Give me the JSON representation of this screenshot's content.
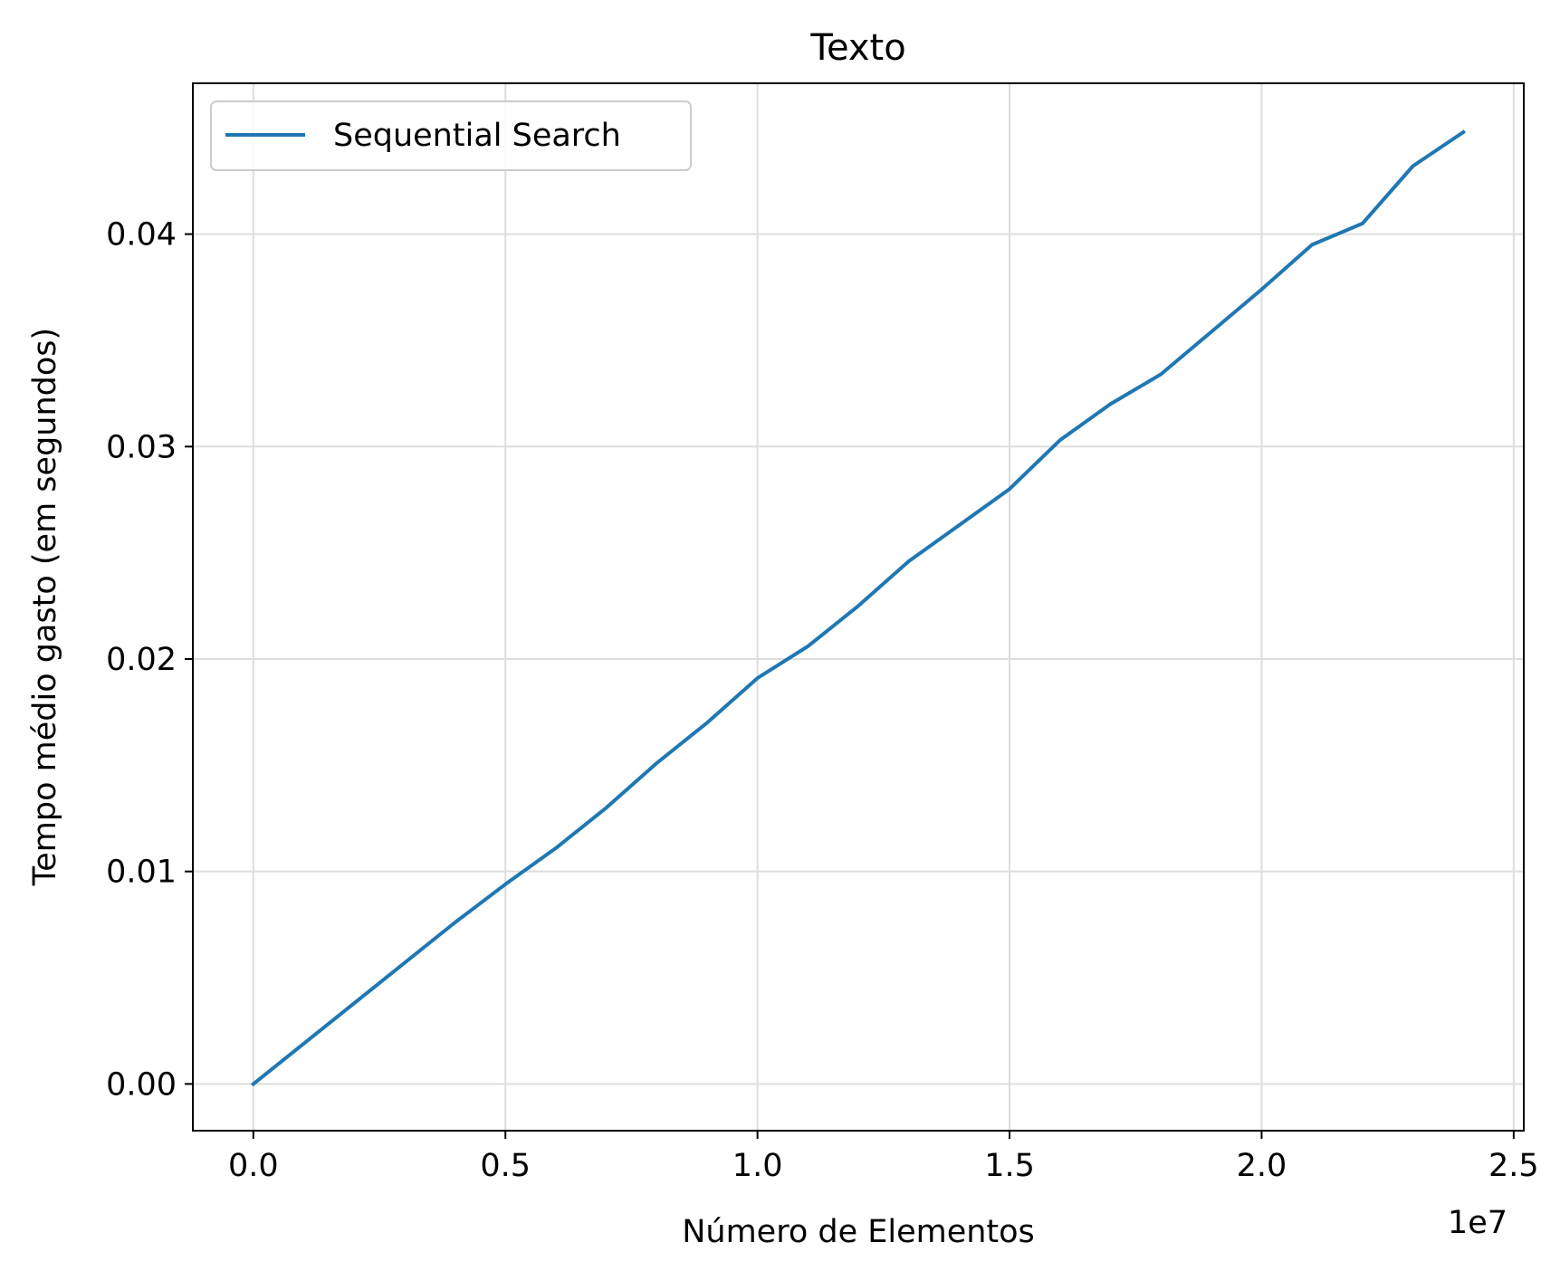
{
  "chart_data": {
    "type": "line",
    "title": "Texto",
    "xlabel": "Número de Elementos",
    "ylabel": "Tempo médio gasto (em segundos)",
    "x_offset_label": "1e7",
    "xlim": [
      -0.12,
      2.52
    ],
    "ylim": [
      -0.0022,
      0.0471
    ],
    "xticks": [
      0.0,
      0.5,
      1.0,
      1.5,
      2.0,
      2.5
    ],
    "xtick_labels": [
      "0.0",
      "0.5",
      "1.0",
      "1.5",
      "2.0",
      "2.5"
    ],
    "yticks": [
      0.0,
      0.01,
      0.02,
      0.03,
      0.04
    ],
    "ytick_labels": [
      "0.00",
      "0.01",
      "0.02",
      "0.03",
      "0.04"
    ],
    "grid": true,
    "legend_position": "top-left",
    "series": [
      {
        "name": "Sequential Search",
        "color": "#1f77b4",
        "x": [
          0.0,
          0.1,
          0.2,
          0.3,
          0.4,
          0.5,
          0.6,
          0.7,
          0.8,
          0.9,
          1.0,
          1.1,
          1.2,
          1.3,
          1.4,
          1.5,
          1.6,
          1.7,
          1.8,
          1.9,
          2.0,
          2.1,
          2.2,
          2.3,
          2.4
        ],
        "y": [
          0.0,
          0.0019,
          0.0038,
          0.0057,
          0.0076,
          0.0094,
          0.0111,
          0.013,
          0.0151,
          0.017,
          0.0191,
          0.0206,
          0.0225,
          0.0246,
          0.0263,
          0.028,
          0.0303,
          0.032,
          0.0334,
          0.0354,
          0.0374,
          0.0395,
          0.0405,
          0.0432,
          0.0448
        ]
      }
    ]
  }
}
